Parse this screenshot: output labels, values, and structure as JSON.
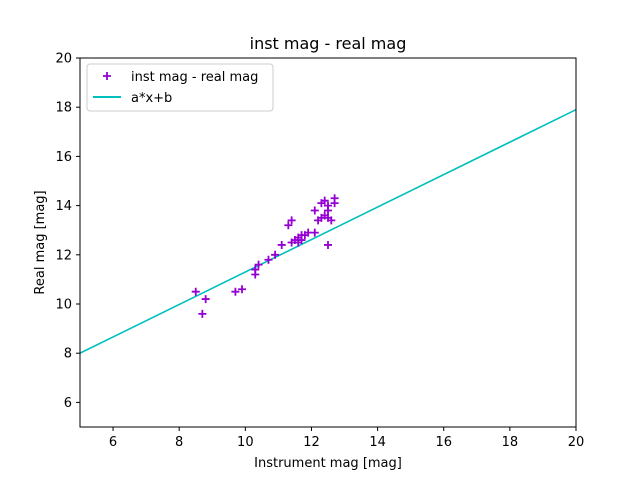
{
  "chart_data": {
    "type": "scatter",
    "title": "inst mag - real mag",
    "xlabel": "Instrument mag [mag]",
    "ylabel": "Real mag [mag]",
    "xlim": [
      5,
      20
    ],
    "ylim": [
      5,
      20
    ],
    "xticks": [
      6,
      8,
      10,
      12,
      14,
      16,
      18,
      20
    ],
    "yticks": [
      6,
      8,
      10,
      12,
      14,
      16,
      18,
      20
    ],
    "grid": false,
    "legend_position": "upper-left",
    "series": [
      {
        "name": "inst mag - real mag",
        "kind": "scatter",
        "marker": "plus",
        "color": "#9400d3",
        "points": [
          [
            8.5,
            10.5
          ],
          [
            8.8,
            10.2
          ],
          [
            8.7,
            9.6
          ],
          [
            9.7,
            10.5
          ],
          [
            9.9,
            10.6
          ],
          [
            10.3,
            11.2
          ],
          [
            10.3,
            11.4
          ],
          [
            10.4,
            11.6
          ],
          [
            10.7,
            11.8
          ],
          [
            10.9,
            12.0
          ],
          [
            11.1,
            12.4
          ],
          [
            11.3,
            13.2
          ],
          [
            11.4,
            13.4
          ],
          [
            11.4,
            12.5
          ],
          [
            11.5,
            12.6
          ],
          [
            11.6,
            12.7
          ],
          [
            11.6,
            12.5
          ],
          [
            11.7,
            12.8
          ],
          [
            11.7,
            12.6
          ],
          [
            11.8,
            12.8
          ],
          [
            11.9,
            12.9
          ],
          [
            12.1,
            12.9
          ],
          [
            12.1,
            13.8
          ],
          [
            12.2,
            13.4
          ],
          [
            12.3,
            14.1
          ],
          [
            12.3,
            13.5
          ],
          [
            12.4,
            14.2
          ],
          [
            12.4,
            13.6
          ],
          [
            12.5,
            14.0
          ],
          [
            12.5,
            13.8
          ],
          [
            12.5,
            13.5
          ],
          [
            12.5,
            12.4
          ],
          [
            12.6,
            13.4
          ],
          [
            12.7,
            14.1
          ],
          [
            12.7,
            14.3
          ]
        ]
      },
      {
        "name": "a*x+b",
        "kind": "line",
        "color": "#00bfbf",
        "points": [
          [
            5,
            8.0
          ],
          [
            20,
            17.9
          ]
        ]
      }
    ]
  }
}
